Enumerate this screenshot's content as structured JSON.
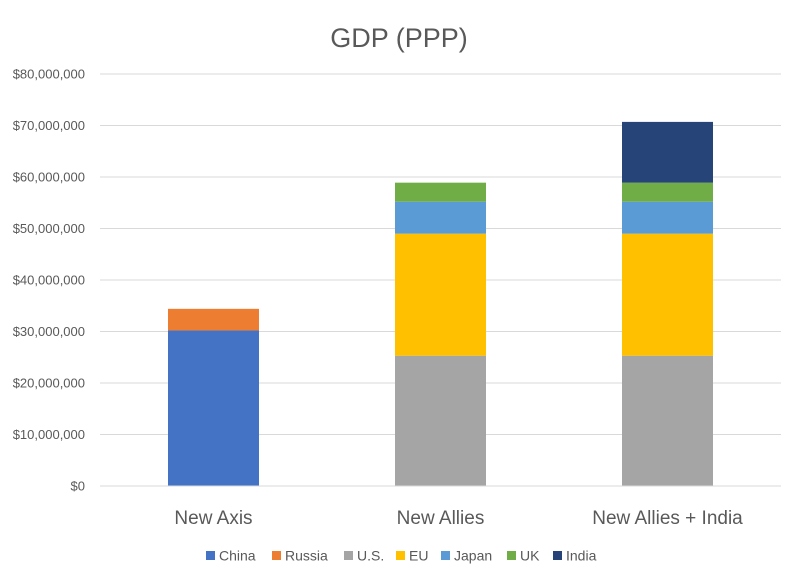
{
  "chart_data": {
    "type": "bar",
    "stacked": true,
    "title": "GDP (PPP)",
    "xlabel": "",
    "ylabel": "",
    "categories": [
      "New Axis",
      "New Allies",
      "New Allies + India"
    ],
    "ylim": [
      0,
      80000000
    ],
    "yticks": [
      0,
      10000000,
      20000000,
      30000000,
      40000000,
      50000000,
      60000000,
      70000000,
      80000000
    ],
    "ytick_labels": [
      "$0",
      "$10,000,000",
      "$20,000,000",
      "$30,000,000",
      "$40,000,000",
      "$50,000,000",
      "$60,000,000",
      "$70,000,000",
      "$80,000,000"
    ],
    "grid": true,
    "legend_position": "bottom",
    "series": [
      {
        "name": "China",
        "color": "#4472c4",
        "values": [
          30200000,
          0,
          0
        ]
      },
      {
        "name": "Russia",
        "color": "#ed7d31",
        "values": [
          4200000,
          0,
          0
        ]
      },
      {
        "name": "U.S.",
        "color": "#a5a5a5",
        "values": [
          0,
          25300000,
          25300000
        ]
      },
      {
        "name": "EU",
        "color": "#ffc000",
        "values": [
          0,
          23700000,
          23700000
        ]
      },
      {
        "name": "Japan",
        "color": "#5b9bd5",
        "values": [
          0,
          6200000,
          6200000
        ]
      },
      {
        "name": "UK",
        "color": "#70ad47",
        "values": [
          0,
          3700000,
          3700000
        ]
      },
      {
        "name": "India",
        "color": "#264478",
        "values": [
          0,
          0,
          11800000
        ]
      }
    ]
  }
}
